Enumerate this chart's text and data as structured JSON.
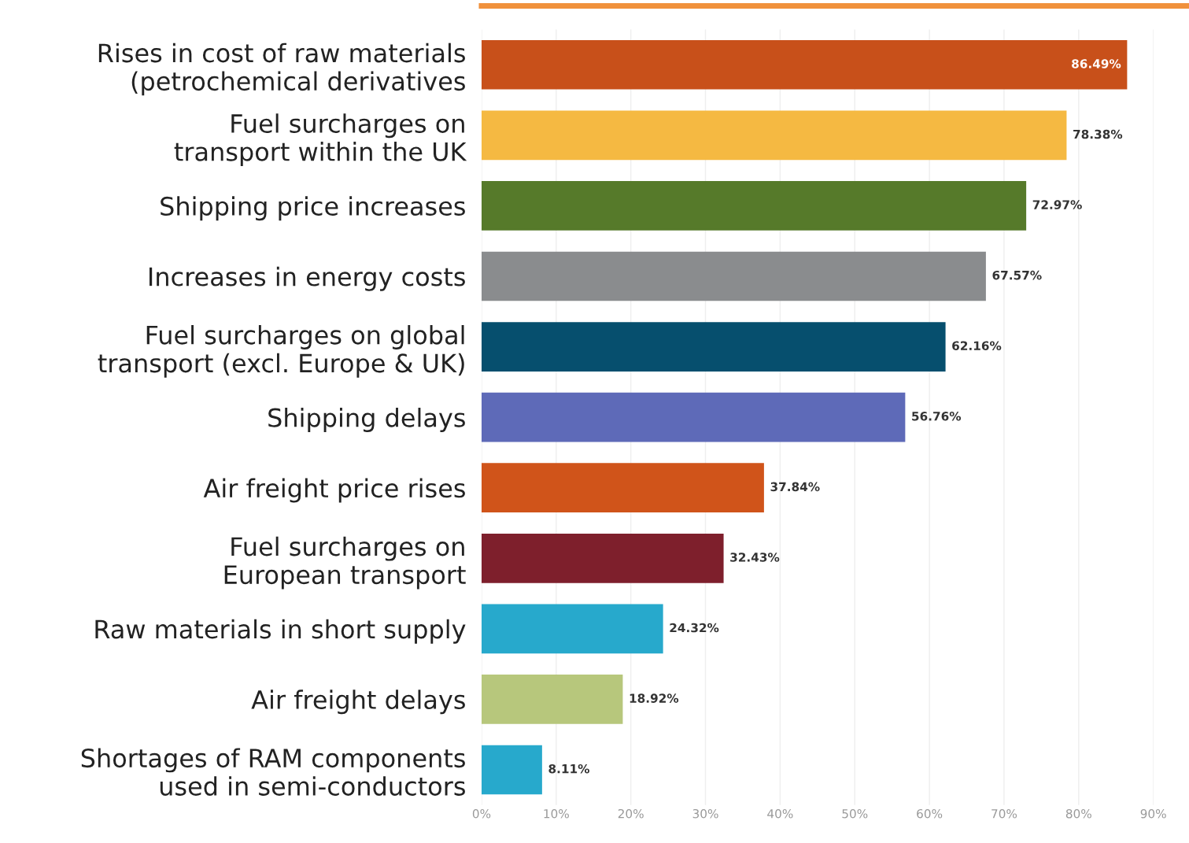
{
  "chart_data": {
    "type": "bar",
    "orientation": "horizontal",
    "categories": [
      "Rises in cost of raw materials\n(petrochemical derivatives",
      "Fuel surcharges on\ntransport within the UK",
      "Shipping price increases",
      "Increases in energy costs",
      "Fuel surcharges on global\ntransport (excl. Europe & UK)",
      "Shipping delays",
      "Air freight price rises",
      "Fuel surcharges on\nEuropean transport",
      "Raw materials in short supply",
      "Air freight delays",
      "Shortages of RAM components\nused in semi-conductors"
    ],
    "values": [
      86.49,
      78.38,
      72.97,
      67.57,
      62.16,
      56.76,
      37.84,
      32.43,
      24.32,
      18.92,
      8.11
    ],
    "value_labels": [
      "86.49%",
      "78.38%",
      "72.97%",
      "67.57%",
      "62.16%",
      "56.76%",
      "37.84%",
      "32.43%",
      "24.32%",
      "18.92%",
      "8.11%"
    ],
    "colors": [
      "#c8501a",
      "#f5b942",
      "#567a2a",
      "#8a8c8e",
      "#064f6e",
      "#5e6ab8",
      "#d0541a",
      "#7e1f2c",
      "#27a9cc",
      "#b7c77c",
      "#27a9cc"
    ],
    "xlim": [
      0,
      90
    ],
    "xticks": [
      {
        "value": 0,
        "label": "0%"
      },
      {
        "value": 10,
        "label": "10%"
      },
      {
        "value": 20,
        "label": "20%"
      },
      {
        "value": 30,
        "label": "30%"
      },
      {
        "value": 40,
        "label": "40%"
      },
      {
        "value": 50,
        "label": "50%"
      },
      {
        "value": 60,
        "label": "60%"
      },
      {
        "value": 70,
        "label": "70%"
      },
      {
        "value": 80,
        "label": "80%"
      },
      {
        "value": 90,
        "label": "90%"
      }
    ],
    "grid": "x"
  }
}
